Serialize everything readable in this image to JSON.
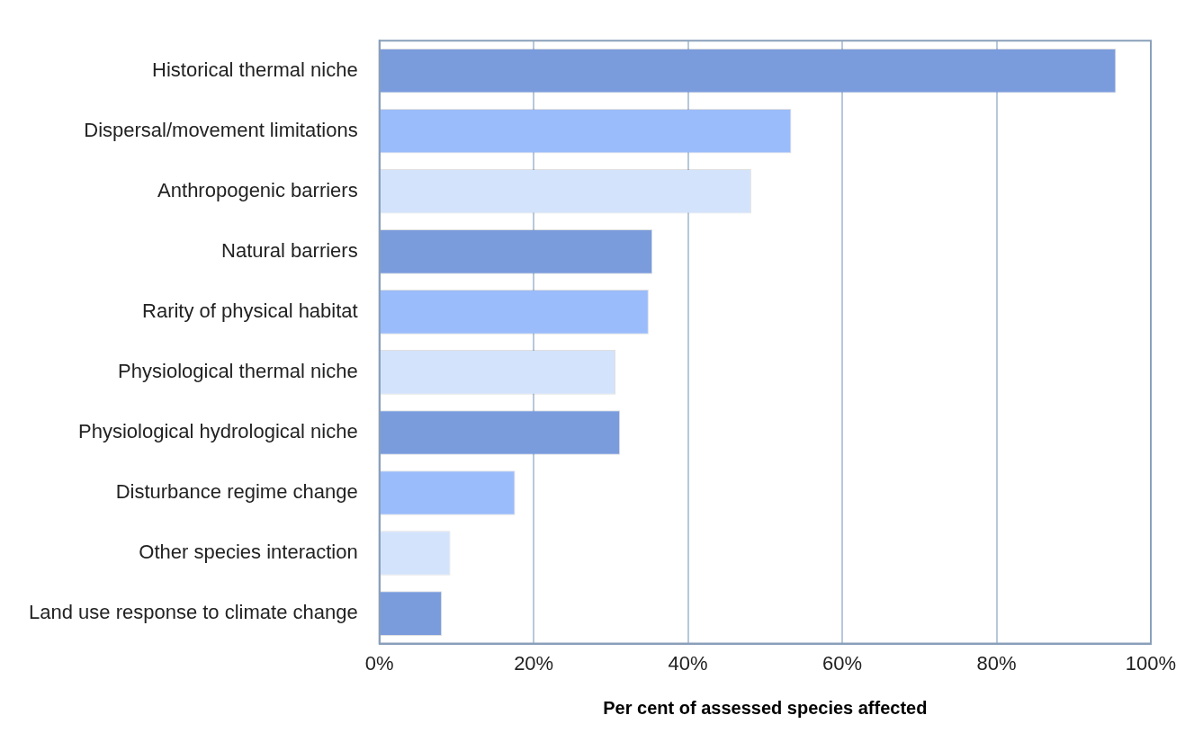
{
  "chart_data": {
    "type": "bar",
    "orientation": "horizontal",
    "xlabel": "Per cent of assessed species affected",
    "categories": [
      "Historical thermal niche",
      "Dispersal/movement limitations",
      "Anthropogenic barriers",
      "Natural barriers",
      "Rarity of physical habitat",
      "Physiological thermal niche",
      "Physiological hydrological niche",
      "Disturbance regime change",
      "Other species interaction",
      "Land use response to climate change"
    ],
    "values": [
      95.5,
      53.4,
      48.2,
      35.4,
      34.9,
      30.6,
      31.2,
      17.6,
      9.2,
      8.1
    ],
    "colors": [
      "#7a9cdd",
      "#9bbcfa",
      "#d3e3fb",
      "#7a9cdd",
      "#9bbcfa",
      "#d3e3fb",
      "#7a9cdd",
      "#9bbcfa",
      "#d3e3fb",
      "#7a9cdd"
    ],
    "xlim": [
      0,
      100
    ],
    "xticks": [
      {
        "value": 0,
        "label": "0%"
      },
      {
        "value": 20,
        "label": "20%"
      },
      {
        "value": 40,
        "label": "40%"
      },
      {
        "value": 60,
        "label": "60%"
      },
      {
        "value": 80,
        "label": "80%"
      },
      {
        "value": 100,
        "label": "100%"
      }
    ],
    "grid": "x",
    "legend": false
  }
}
